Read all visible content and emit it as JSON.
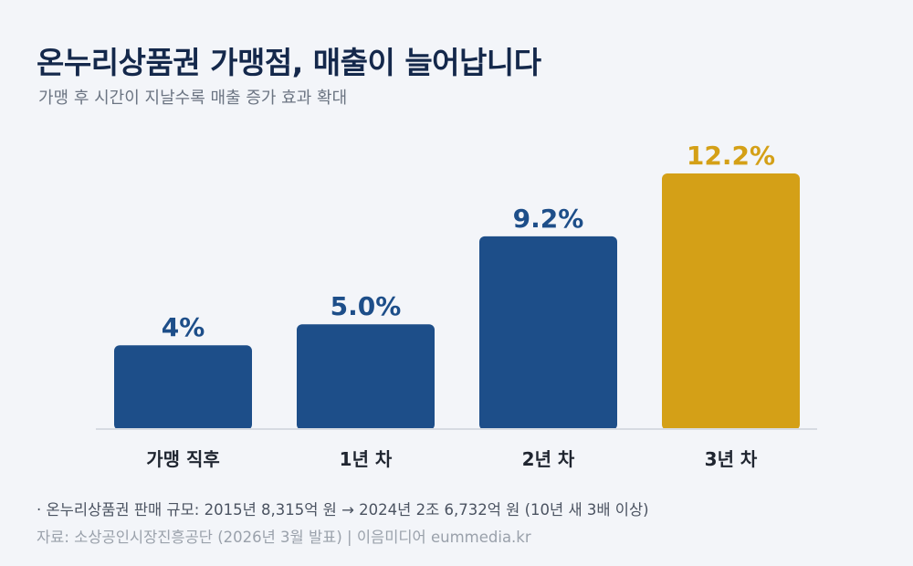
{
  "header": {
    "title": "온누리상품권 가맹점, 매출이 늘어납니다",
    "subtitle": "가맹 후 시간이 지날수록 매출 증가 효과 확대"
  },
  "chart_data": {
    "type": "bar",
    "title": "온누리상품권 가맹점, 매출이 늘어납니다",
    "subtitle": "가맹 후 시간이 지날수록 매출 증가 효과 확대",
    "categories": [
      "가맹 직후",
      "1년 차",
      "2년 차",
      "3년 차"
    ],
    "values": [
      4.0,
      5.0,
      9.2,
      12.2
    ],
    "value_labels": [
      "4%",
      "5.0%",
      "9.2%",
      "12.2%"
    ],
    "unit": "%",
    "xlabel": "",
    "ylabel": "",
    "ylim": [
      0,
      12.2
    ],
    "grid": false,
    "legend": "none",
    "colors": {
      "default": "#1d4e89",
      "highlight": "#d4a017",
      "highlight_index": 3,
      "baseline": "#d7dbe2"
    }
  },
  "footer": {
    "note": "· 온누리상품권 판매 규모: 2015년 8,315억 원 → 2024년 2조 6,732억 원 (10년 새 3배 이상)",
    "source": "자료: 소상공인시장진흥공단 (2026년 3월 발표)  |  이음미디어 eummedia.kr"
  }
}
